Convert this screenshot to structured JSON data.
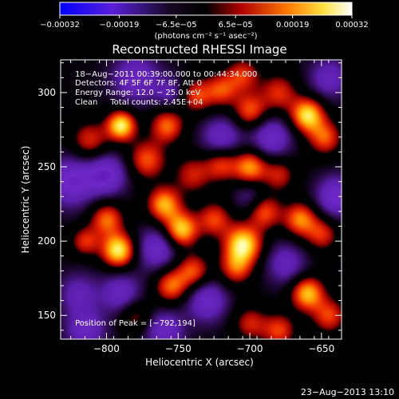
{
  "chart_data": {
    "type": "heatmap",
    "title": "Reconstructed RHESSI Image",
    "xlabel": "Heliocentric X (arcsec)",
    "ylabel": "Heliocentric Y (arcsec)",
    "xlim": [
      -832,
      -636
    ],
    "ylim": [
      134,
      322
    ],
    "xticks": [
      -800,
      -750,
      -700,
      -650
    ],
    "yticks": [
      150,
      200,
      250,
      300
    ],
    "xtick_labels": [
      "−800",
      "−750",
      "−700",
      "−650"
    ],
    "ytick_labels": [
      "150",
      "200",
      "250",
      "300"
    ],
    "colorbar": {
      "range": [
        -0.00032,
        0.00032
      ],
      "ticks": [
        -0.00032,
        -0.00019,
        -6.5e-05,
        6.5e-05,
        0.00019,
        0.00032
      ],
      "tick_labels": [
        "−0.00032",
        "−0.00019",
        "−6.5e−05",
        "6.5e−05",
        "0.00019",
        "0.00032"
      ],
      "unit_label": "(photons cm⁻² s⁻¹ asec⁻²)",
      "colormap": [
        "#000000",
        "#2a10c8",
        "#5a1fd8",
        "#000000",
        "#c80000",
        "#ff8800",
        "#ffff66",
        "#ffffff"
      ]
    },
    "annotations": [
      "18−Aug−2011 00:39:00.000 to 00:44:34.000",
      "Detectors: 4F 5F 6F 7F 8F, Att 0",
      "Energy Range: 12.0 − 25.0 keV",
      "Clean     Total counts: 2.45E+04"
    ],
    "peak_label": "Position of Peak = [−792,194]",
    "peak": [
      -792,
      194
    ],
    "sources": [
      {
        "x": -790,
        "y": 278,
        "v": 1.0,
        "s": 7
      },
      {
        "x": -772,
        "y": 255,
        "v": 0.6,
        "s": 9
      },
      {
        "x": -812,
        "y": 268,
        "v": 0.5,
        "s": 9
      },
      {
        "x": -758,
        "y": 278,
        "v": 0.65,
        "s": 8
      },
      {
        "x": -738,
        "y": 298,
        "v": 0.55,
        "s": 8
      },
      {
        "x": -720,
        "y": 302,
        "v": 0.55,
        "s": 8
      },
      {
        "x": -700,
        "y": 288,
        "v": 0.6,
        "s": 8
      },
      {
        "x": -705,
        "y": 312,
        "v": 0.5,
        "s": 8
      },
      {
        "x": -680,
        "y": 300,
        "v": 0.5,
        "s": 9
      },
      {
        "x": -660,
        "y": 285,
        "v": 0.95,
        "s": 8
      },
      {
        "x": -648,
        "y": 270,
        "v": 0.6,
        "s": 8
      },
      {
        "x": -740,
        "y": 245,
        "v": 0.45,
        "s": 9
      },
      {
        "x": -720,
        "y": 252,
        "v": 0.55,
        "s": 8
      },
      {
        "x": -700,
        "y": 250,
        "v": 0.75,
        "s": 8
      },
      {
        "x": -680,
        "y": 245,
        "v": 0.45,
        "s": 8
      },
      {
        "x": -792,
        "y": 194,
        "v": 1.0,
        "s": 8
      },
      {
        "x": -800,
        "y": 215,
        "v": 0.65,
        "s": 8
      },
      {
        "x": -815,
        "y": 200,
        "v": 0.5,
        "s": 7
      },
      {
        "x": -760,
        "y": 225,
        "v": 0.8,
        "s": 8
      },
      {
        "x": -748,
        "y": 208,
        "v": 0.9,
        "s": 8
      },
      {
        "x": -740,
        "y": 180,
        "v": 0.6,
        "s": 8
      },
      {
        "x": -755,
        "y": 170,
        "v": 0.65,
        "s": 8
      },
      {
        "x": -725,
        "y": 215,
        "v": 0.55,
        "s": 8
      },
      {
        "x": -705,
        "y": 198,
        "v": 1.0,
        "s": 9
      },
      {
        "x": -710,
        "y": 182,
        "v": 0.55,
        "s": 8
      },
      {
        "x": -690,
        "y": 220,
        "v": 0.6,
        "s": 8
      },
      {
        "x": -665,
        "y": 215,
        "v": 0.7,
        "s": 8
      },
      {
        "x": -650,
        "y": 205,
        "v": 0.5,
        "s": 8
      },
      {
        "x": -660,
        "y": 165,
        "v": 0.85,
        "s": 8
      },
      {
        "x": -645,
        "y": 150,
        "v": 0.55,
        "s": 8
      },
      {
        "x": -700,
        "y": 145,
        "v": 0.45,
        "s": 8
      },
      {
        "x": -680,
        "y": 140,
        "v": 0.55,
        "s": 8
      },
      {
        "x": -780,
        "y": 150,
        "v": 0.4,
        "s": 8
      },
      {
        "x": -820,
        "y": 165,
        "v": -0.4,
        "s": 10
      },
      {
        "x": -780,
        "y": 310,
        "v": -0.5,
        "s": 12
      },
      {
        "x": -825,
        "y": 240,
        "v": -0.6,
        "s": 12
      },
      {
        "x": -800,
        "y": 245,
        "v": -0.6,
        "s": 10
      },
      {
        "x": -765,
        "y": 195,
        "v": -0.55,
        "s": 10
      },
      {
        "x": -790,
        "y": 165,
        "v": -0.5,
        "s": 10
      },
      {
        "x": -730,
        "y": 160,
        "v": -0.55,
        "s": 10
      },
      {
        "x": -720,
        "y": 270,
        "v": -0.5,
        "s": 10
      },
      {
        "x": -685,
        "y": 270,
        "v": -0.55,
        "s": 10
      },
      {
        "x": -675,
        "y": 185,
        "v": -0.45,
        "s": 10
      },
      {
        "x": -640,
        "y": 230,
        "v": -0.6,
        "s": 10
      },
      {
        "x": -645,
        "y": 310,
        "v": -0.45,
        "s": 10
      },
      {
        "x": -760,
        "y": 140,
        "v": -0.5,
        "s": 10
      },
      {
        "x": -815,
        "y": 140,
        "v": -0.5,
        "s": 10
      },
      {
        "x": -700,
        "y": 230,
        "v": -0.3,
        "s": 8
      },
      {
        "x": -755,
        "y": 300,
        "v": -0.35,
        "s": 8
      }
    ]
  },
  "footer": {
    "timestamp": "23−Aug−2013 13:10"
  }
}
